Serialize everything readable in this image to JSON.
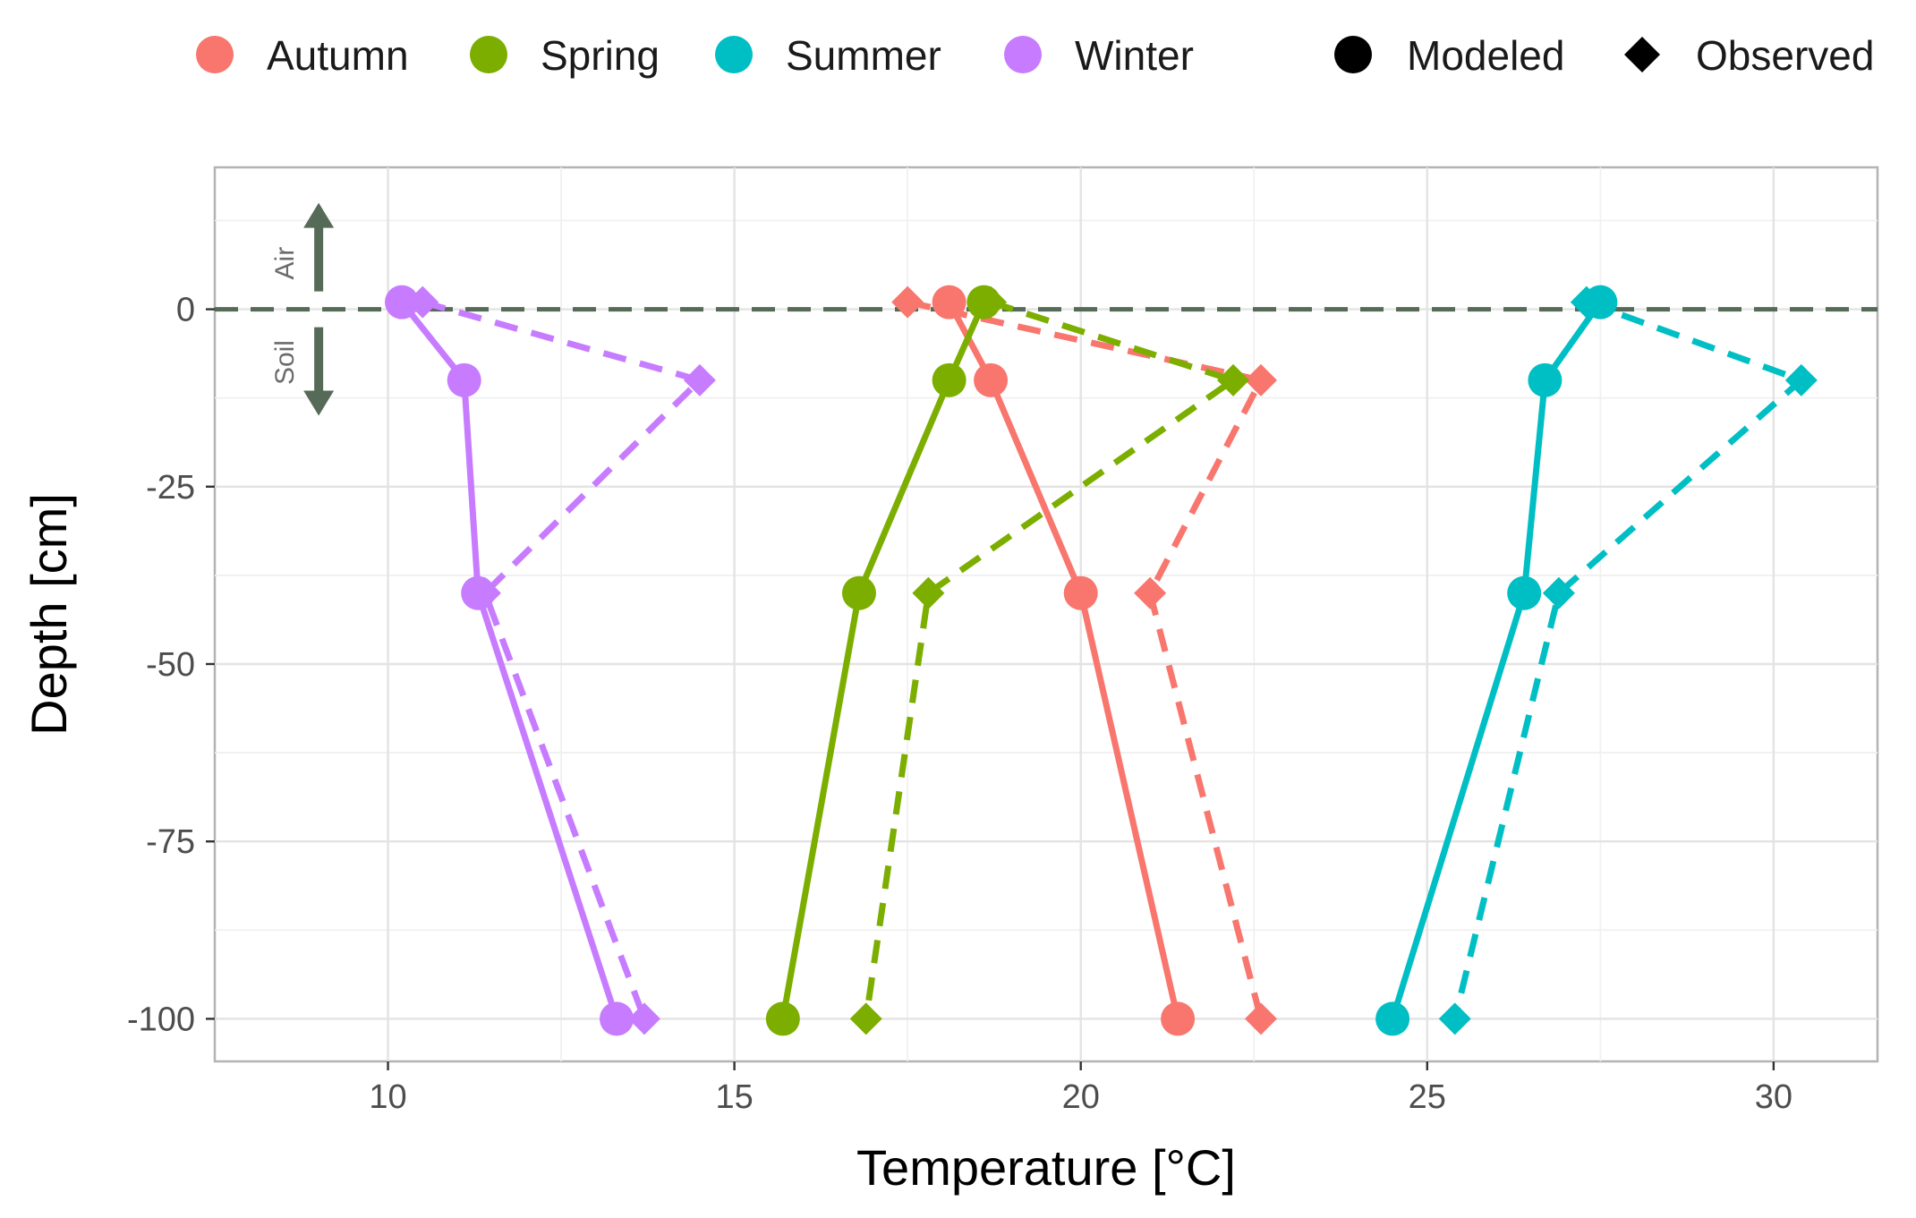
{
  "chart_data": {
    "type": "line",
    "title": "",
    "xlabel": "Temperature [°C]",
    "ylabel": "Depth [cm]",
    "xlim": [
      7.5,
      31.5
    ],
    "ylim": [
      -106,
      20
    ],
    "x_ticks": [
      10,
      15,
      20,
      25,
      30
    ],
    "y_ticks": [
      0,
      -25,
      -50,
      -75,
      -100
    ],
    "x_tick_labels": [
      "10",
      "15",
      "20",
      "25",
      "30"
    ],
    "y_tick_labels": [
      "0",
      "-25",
      "-50",
      "-75",
      "-100"
    ],
    "grid": true,
    "legend_position": "top",
    "reference_line": {
      "y": 0,
      "style": "dashed",
      "color": "#556b57"
    },
    "annotation": {
      "upper_label": "Air",
      "lower_label": "Soil",
      "x": 9.0,
      "y_top": 15,
      "y_bottom": -15,
      "color": "#556b57"
    },
    "legend": {
      "seasons": [
        {
          "name": "Autumn",
          "color": "#F8766D"
        },
        {
          "name": "Spring",
          "color": "#7CAE00"
        },
        {
          "name": "Summer",
          "color": "#00BFC4"
        },
        {
          "name": "Winter",
          "color": "#C77CFF"
        }
      ],
      "types": [
        {
          "name": "Modeled",
          "shape": "circle"
        },
        {
          "name": "Observed",
          "shape": "diamond"
        }
      ]
    },
    "series": [
      {
        "name": "Autumn Modeled",
        "season": "Autumn",
        "kind": "Modeled",
        "color": "#F8766D",
        "points": [
          {
            "x": 18.1,
            "y": 1
          },
          {
            "x": 18.7,
            "y": -10
          },
          {
            "x": 20.0,
            "y": -40
          },
          {
            "x": 21.4,
            "y": -100
          }
        ]
      },
      {
        "name": "Autumn Observed",
        "season": "Autumn",
        "kind": "Observed",
        "color": "#F8766D",
        "points": [
          {
            "x": 17.5,
            "y": 1
          },
          {
            "x": 22.6,
            "y": -10
          },
          {
            "x": 21.0,
            "y": -40
          },
          {
            "x": 22.6,
            "y": -100
          }
        ]
      },
      {
        "name": "Spring Modeled",
        "season": "Spring",
        "kind": "Modeled",
        "color": "#7CAE00",
        "points": [
          {
            "x": 18.6,
            "y": 1
          },
          {
            "x": 18.1,
            "y": -10
          },
          {
            "x": 16.8,
            "y": -40
          },
          {
            "x": 15.7,
            "y": -100
          }
        ]
      },
      {
        "name": "Spring Observed",
        "season": "Spring",
        "kind": "Observed",
        "color": "#7CAE00",
        "points": [
          {
            "x": 18.7,
            "y": 1
          },
          {
            "x": 22.2,
            "y": -10
          },
          {
            "x": 17.8,
            "y": -40
          },
          {
            "x": 16.9,
            "y": -100
          }
        ]
      },
      {
        "name": "Summer Modeled",
        "season": "Summer",
        "kind": "Modeled",
        "color": "#00BFC4",
        "points": [
          {
            "x": 27.5,
            "y": 1
          },
          {
            "x": 26.7,
            "y": -10
          },
          {
            "x": 26.4,
            "y": -40
          },
          {
            "x": 24.5,
            "y": -100
          }
        ]
      },
      {
        "name": "Summer Observed",
        "season": "Summer",
        "kind": "Observed",
        "color": "#00BFC4",
        "points": [
          {
            "x": 27.3,
            "y": 1
          },
          {
            "x": 30.4,
            "y": -10
          },
          {
            "x": 26.9,
            "y": -40
          },
          {
            "x": 25.4,
            "y": -100
          }
        ]
      },
      {
        "name": "Winter Modeled",
        "season": "Winter",
        "kind": "Modeled",
        "color": "#C77CFF",
        "points": [
          {
            "x": 10.2,
            "y": 1
          },
          {
            "x": 11.1,
            "y": -10
          },
          {
            "x": 11.3,
            "y": -40
          },
          {
            "x": 13.3,
            "y": -100
          }
        ]
      },
      {
        "name": "Winter Observed",
        "season": "Winter",
        "kind": "Observed",
        "color": "#C77CFF",
        "points": [
          {
            "x": 10.5,
            "y": 1
          },
          {
            "x": 14.5,
            "y": -10
          },
          {
            "x": 11.4,
            "y": -40
          },
          {
            "x": 13.7,
            "y": -100
          }
        ]
      }
    ]
  }
}
